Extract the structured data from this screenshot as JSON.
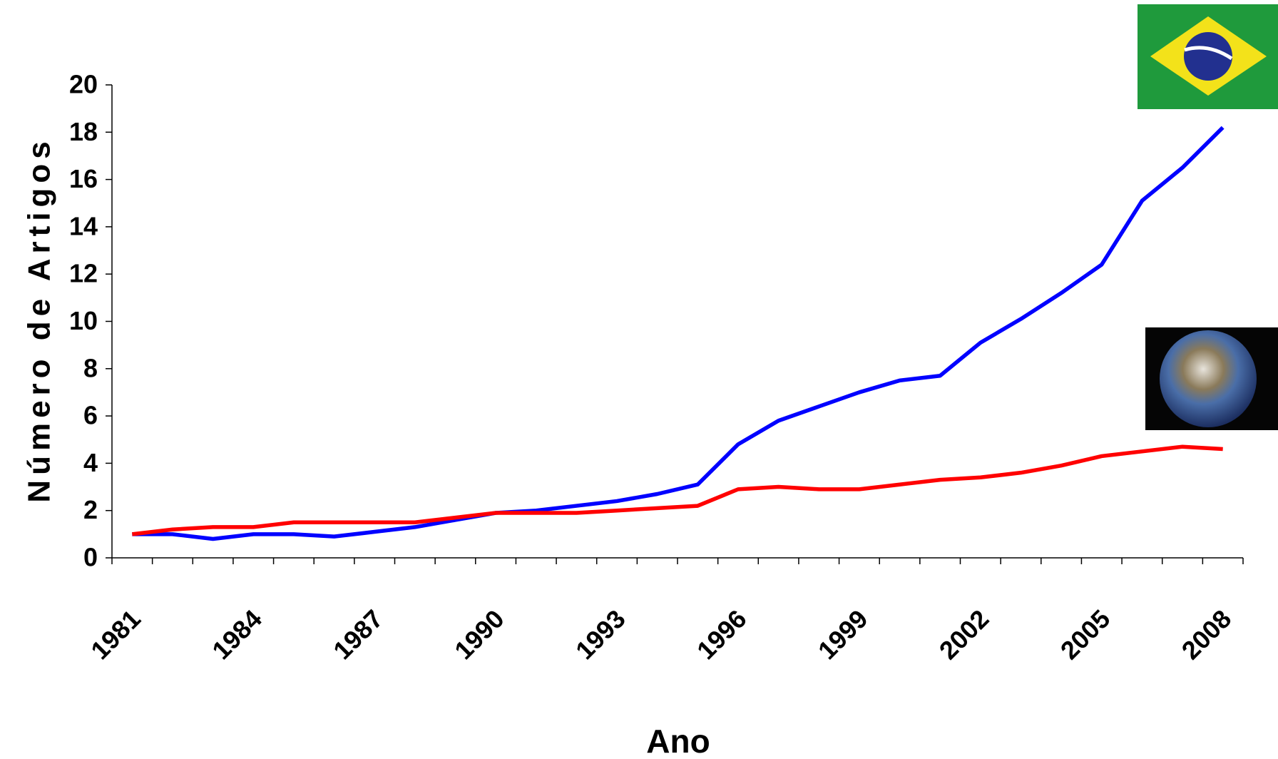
{
  "chart_data": {
    "type": "line",
    "x_label": "Ano",
    "y_label": "Número de Artigos",
    "x": [
      1981,
      1982,
      1983,
      1984,
      1985,
      1986,
      1987,
      1988,
      1989,
      1990,
      1991,
      1992,
      1993,
      1994,
      1995,
      1996,
      1997,
      1998,
      1999,
      2000,
      2001,
      2002,
      2003,
      2004,
      2005,
      2006,
      2007,
      2008
    ],
    "xlim": [
      1980.5,
      2008.5
    ],
    "xticks": [
      1981,
      1984,
      1987,
      1990,
      1993,
      1996,
      1999,
      2002,
      2005,
      2008
    ],
    "ylim": [
      0,
      20
    ],
    "yticks": [
      0,
      2,
      4,
      6,
      8,
      10,
      12,
      14,
      16,
      18,
      20
    ],
    "grid": false,
    "series": [
      {
        "color": "#0000ff",
        "values": [
          1.0,
          1.0,
          0.8,
          1.0,
          1.0,
          0.9,
          1.1,
          1.3,
          1.6,
          1.9,
          2.0,
          2.2,
          2.4,
          2.7,
          3.1,
          4.8,
          5.8,
          6.4,
          7.0,
          7.5,
          7.7,
          9.1,
          10.1,
          11.2,
          12.4,
          15.1,
          16.5,
          18.2
        ]
      },
      {
        "color": "#ff0000",
        "values": [
          1.0,
          1.2,
          1.3,
          1.3,
          1.5,
          1.5,
          1.5,
          1.5,
          1.7,
          1.9,
          1.9,
          1.9,
          2.0,
          2.1,
          2.2,
          2.9,
          3.0,
          2.9,
          2.9,
          3.1,
          3.3,
          3.4,
          3.6,
          3.9,
          4.3,
          4.5,
          4.7,
          4.6
        ]
      }
    ]
  }
}
